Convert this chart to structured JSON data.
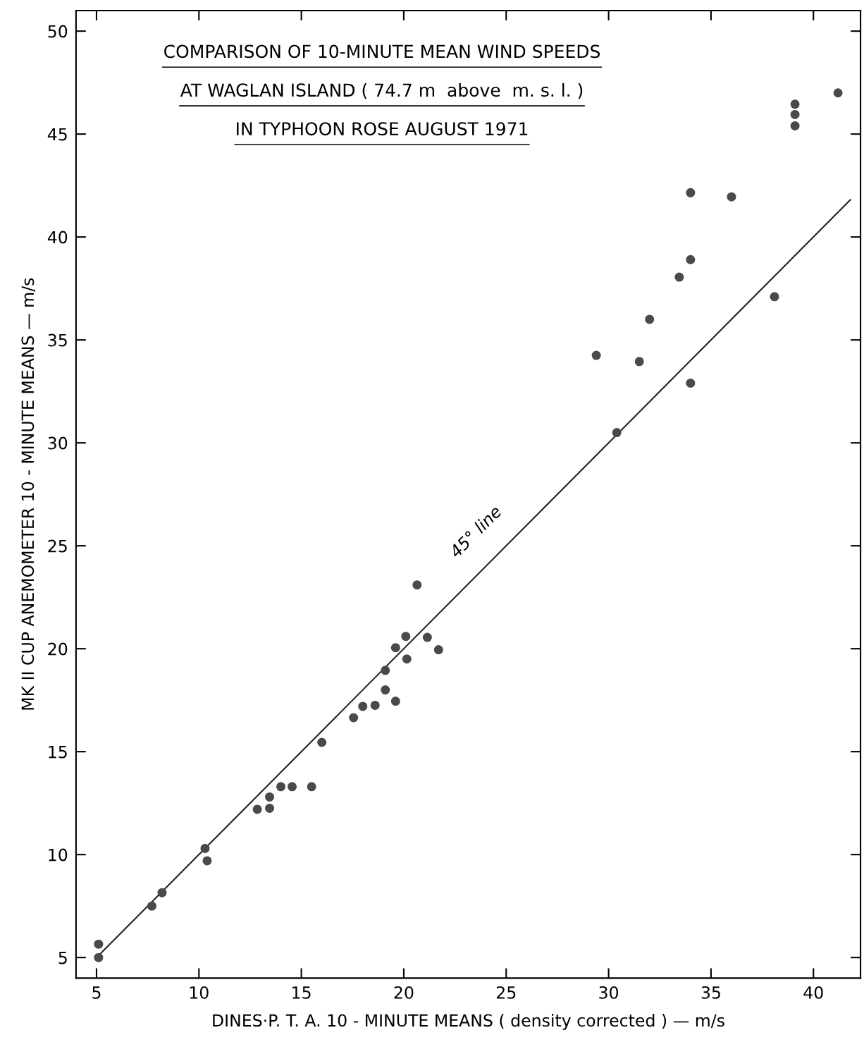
{
  "chart_data": {
    "type": "scatter",
    "title": "COMPARISON OF 10-MINUTE MEAN WIND SPEEDS\nAT WAGLAN ISLAND ( 74.7 m  above  m. s. l. )\nIN TYPHOON ROSE AUGUST 1971",
    "xlabel": "DINES·P. T. A. 10 - MINUTE MEANS ( density corrected ) — m/s",
    "ylabel": "MK II CUP ANEMOMETER 10 - MINUTE MEANS — m/s",
    "xlim": [
      4,
      42.3
    ],
    "ylim": [
      4,
      51
    ],
    "xticks": [
      5,
      10,
      15,
      20,
      25,
      30,
      35,
      40
    ],
    "yticks": [
      5,
      10,
      15,
      20,
      25,
      30,
      35,
      40,
      45,
      50
    ],
    "grid": false,
    "marker": "circle",
    "series": [
      {
        "color": "#4a4a4a",
        "x": [
          5.1,
          5.1,
          7.7,
          8.2,
          10.3,
          10.4,
          12.85,
          13.45,
          13.45,
          14.0,
          14.55,
          15.5,
          16.0,
          17.55,
          18.0,
          18.6,
          19.1,
          19.1,
          19.6,
          19.6,
          20.1,
          20.15,
          20.65,
          21.15,
          21.7,
          29.4,
          30.4,
          31.5,
          32.0,
          33.45,
          34.0,
          34.0,
          34.0,
          36.0,
          38.1,
          39.1,
          39.1,
          39.1,
          41.2
        ],
        "values": [
          5.0,
          5.65,
          7.5,
          8.15,
          10.3,
          9.7,
          12.2,
          12.8,
          12.25,
          13.3,
          13.3,
          13.3,
          15.45,
          16.65,
          17.2,
          17.25,
          18.0,
          18.95,
          17.45,
          20.05,
          20.6,
          19.5,
          23.1,
          20.55,
          19.95,
          34.25,
          30.5,
          33.95,
          36.0,
          38.05,
          42.15,
          38.9,
          32.9,
          41.95,
          37.1,
          46.45,
          45.95,
          45.4,
          47.0
        ]
      },
      {
        "type": "line",
        "color": "#222222",
        "marker": "none",
        "x": [
          5,
          41.8
        ],
        "values": [
          5,
          41.8
        ]
      }
    ],
    "annotations": [
      {
        "text": "45° line",
        "x": 24.6,
        "y": 24.6
      }
    ]
  }
}
